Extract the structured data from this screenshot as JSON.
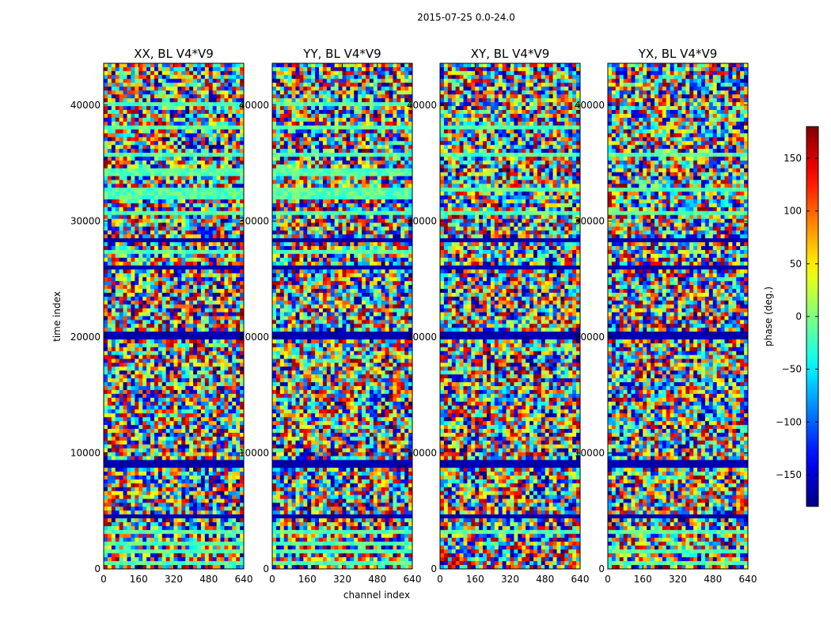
{
  "chart_data": {
    "type": "heatmap",
    "suptitle": "2015-07-25 0.0-24.0",
    "xlabel": "channel index",
    "ylabel": "time index",
    "xlim": [
      0,
      640
    ],
    "ylim": [
      0,
      43600
    ],
    "x_ticks": [
      0,
      160,
      320,
      480,
      640
    ],
    "y_ticks": [
      0,
      10000,
      20000,
      30000,
      40000
    ],
    "colormap": "jet",
    "colorbar": {
      "label": "phase (deg.)",
      "range": [
        -180,
        180
      ],
      "ticks": [
        -150,
        -100,
        -50,
        0,
        50,
        100,
        150
      ],
      "tick_labels": [
        "−150",
        "−100",
        "−50",
        "0",
        "50",
        "100",
        "150"
      ]
    },
    "panels": [
      {
        "title": "XX, BL V4*V9",
        "correlation": "XX",
        "baseline": "V4*V9"
      },
      {
        "title": "YY, BL V4*V9",
        "correlation": "YY",
        "baseline": "V4*V9"
      },
      {
        "title": "XY, BL V4*V9",
        "correlation": "XY",
        "baseline": "V4*V9"
      },
      {
        "title": "YX, BL V4*V9",
        "correlation": "YX",
        "baseline": "V4*V9"
      }
    ],
    "flagged_time_bands": [
      [
        4400,
        4800
      ],
      [
        8800,
        9300
      ],
      [
        19900,
        20300
      ],
      [
        25800,
        26100
      ],
      [
        28300,
        28500
      ]
    ],
    "near_zero_phase_time_bands": [
      [
        200,
        700
      ],
      [
        1200,
        1600
      ],
      [
        2000,
        2500
      ],
      [
        3000,
        3400
      ],
      [
        12600,
        12900
      ],
      [
        27000,
        27400
      ],
      [
        30500,
        31000
      ],
      [
        32000,
        33000
      ],
      [
        34000,
        34700
      ],
      [
        35500,
        35900
      ],
      [
        38000,
        38400
      ],
      [
        39800,
        40300
      ]
    ]
  }
}
